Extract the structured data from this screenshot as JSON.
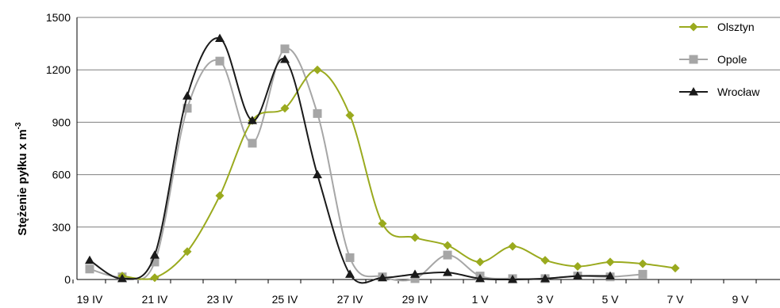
{
  "chart_data": {
    "type": "line",
    "xlabel": "",
    "ylabel": "Stężenie pyłku x m",
    "ylabel_sup": "-3",
    "ylim": [
      0,
      1500
    ],
    "yticks": [
      0,
      300,
      600,
      900,
      1200,
      1500
    ],
    "grid": "horizontal",
    "legend_position": "top-right",
    "x_tick_labels": [
      "19 IV",
      "21 IV",
      "23 IV",
      "25 IV",
      "27 IV",
      "29 IV",
      "1 V",
      "3 V",
      "5 V",
      "7 V",
      "9 V"
    ],
    "series": [
      {
        "name": "Olsztyn",
        "color": "#9aaa1e",
        "marker": "diamond",
        "values": [
          null,
          20,
          10,
          160,
          480,
          910,
          980,
          1200,
          940,
          320,
          240,
          195,
          100,
          190,
          110,
          75,
          100,
          90,
          65,
          null,
          null
        ]
      },
      {
        "name": "Opole",
        "color": "#a6a6a6",
        "marker": "square",
        "values": [
          60,
          15,
          100,
          980,
          1250,
          780,
          1320,
          950,
          125,
          15,
          5,
          140,
          20,
          5,
          5,
          20,
          15,
          30,
          null,
          null,
          null
        ]
      },
      {
        "name": "Wrocław",
        "color": "#1a1a1a",
        "marker": "triangle",
        "values": [
          110,
          5,
          140,
          1050,
          1380,
          910,
          1260,
          600,
          30,
          10,
          30,
          40,
          5,
          0,
          5,
          20,
          20,
          null,
          null,
          null,
          null
        ]
      }
    ]
  }
}
